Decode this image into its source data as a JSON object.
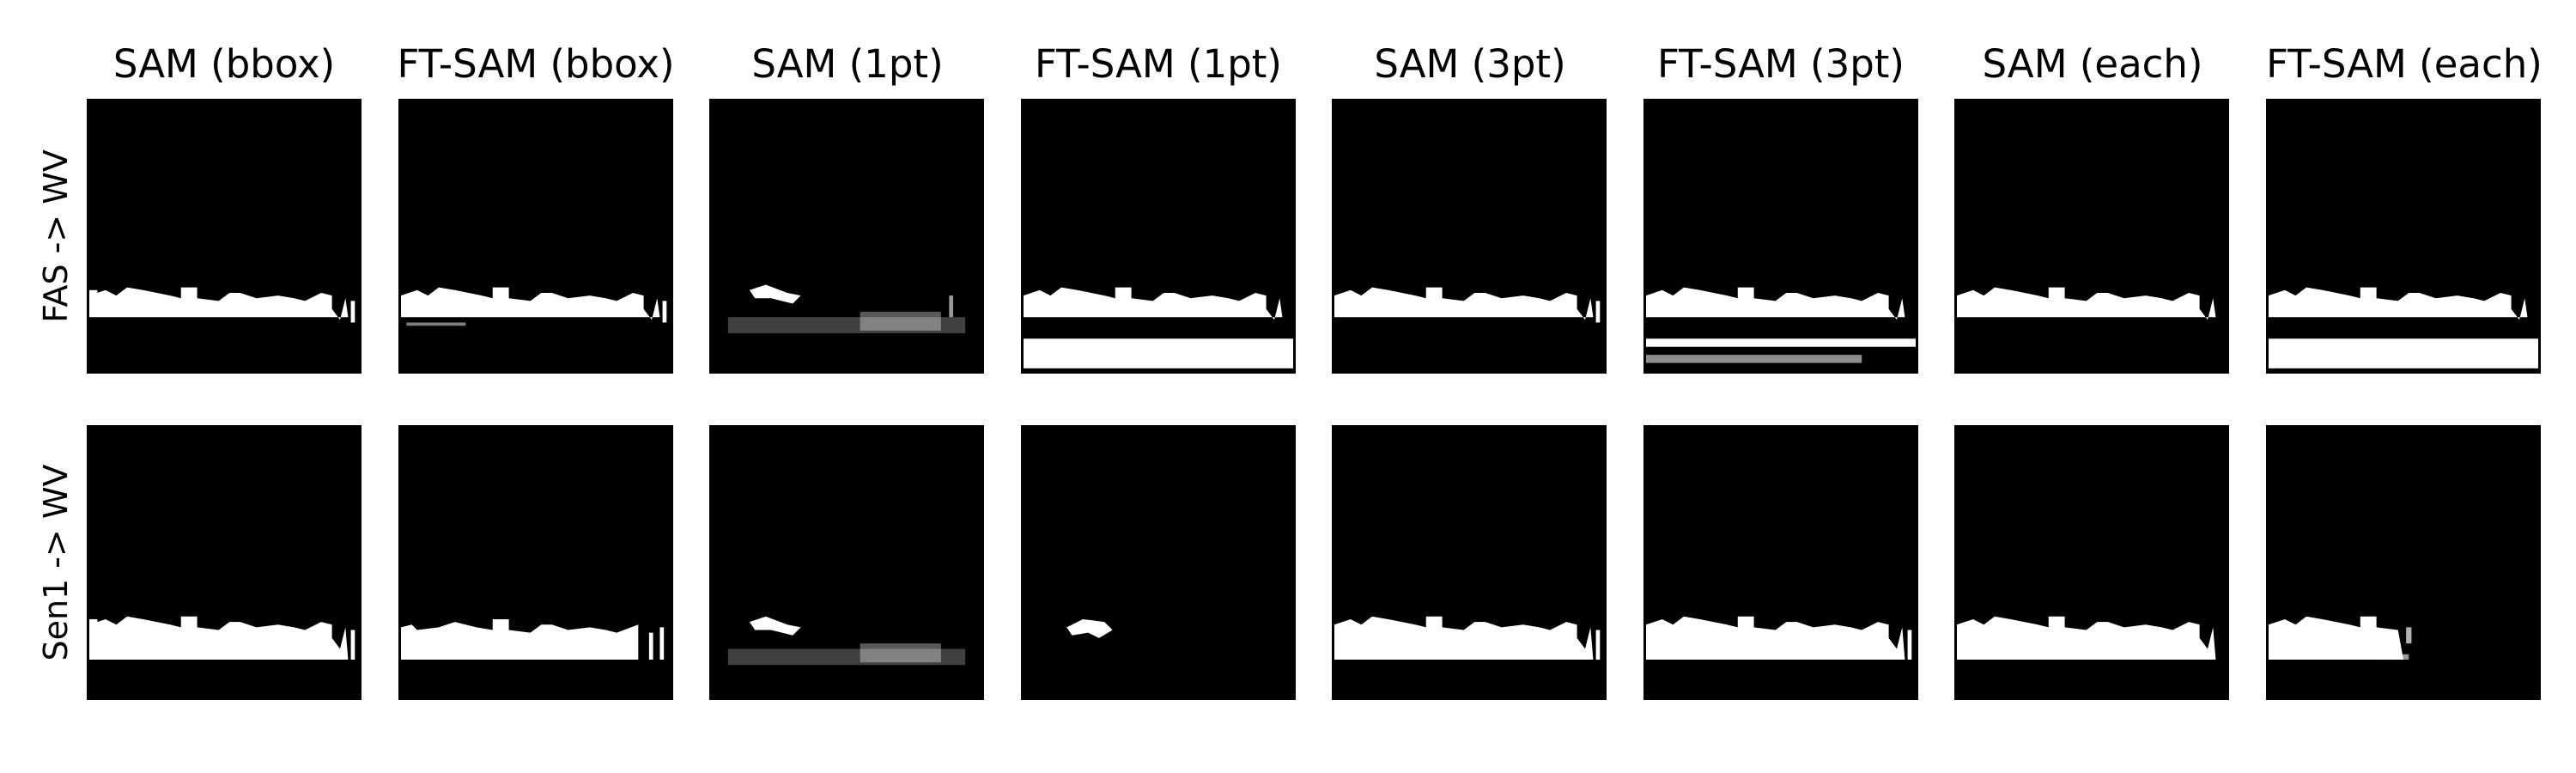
{
  "column_titles": [
    "SAM (bbox)",
    "FT-SAM (bbox)",
    "SAM (1pt)",
    "FT-SAM (1pt)",
    "SAM (3pt)",
    "FT-SAM (3pt)",
    "SAM (each)",
    "FT-SAM (each)"
  ],
  "row_labels": [
    "FAS -> WV",
    "Sen1 -> WV"
  ],
  "colors": {
    "background": "#000000",
    "mask": "#ffffff"
  }
}
